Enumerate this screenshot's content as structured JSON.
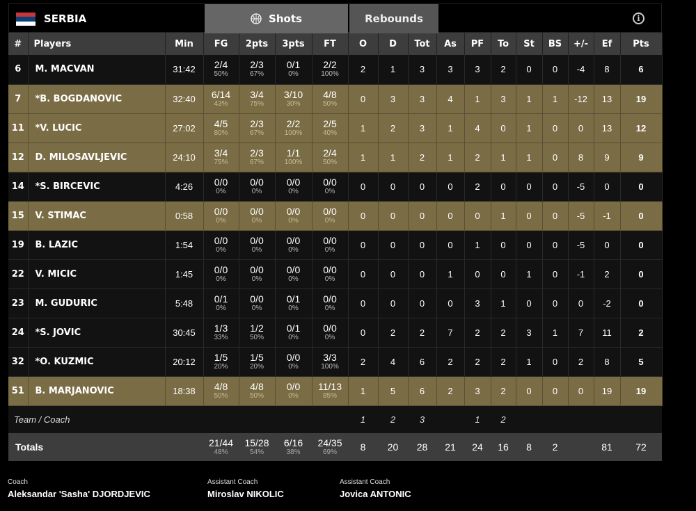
{
  "header": {
    "team": "SERBIA",
    "flag_colors": [
      "#c6363c",
      "#0c4076",
      "#ffffff"
    ],
    "tabs": [
      {
        "label": "Shots",
        "icon": "basketball-icon"
      },
      {
        "label": "Rebounds"
      }
    ],
    "info_icon": "info-icon"
  },
  "columns": [
    "#",
    "Players",
    "Min",
    "FG",
    "2pts",
    "3pts",
    "FT",
    "O",
    "D",
    "Tot",
    "As",
    "PF",
    "To",
    "St",
    "BS",
    "+/-",
    "Ef",
    "Pts"
  ],
  "colors": {
    "starter_row": "#7a6c44",
    "bench_row": "#121212",
    "header": "#3d3d3d"
  },
  "players": [
    {
      "num": "6",
      "name": "M. MACVAN",
      "min": "31:42",
      "fg": [
        "2/4",
        "50%"
      ],
      "p2": [
        "2/3",
        "67%"
      ],
      "p3": [
        "0/1",
        "0%"
      ],
      "ft": [
        "2/2",
        "100%"
      ],
      "stats": [
        "2",
        "1",
        "3",
        "3",
        "3",
        "2",
        "0",
        "0",
        "-4",
        "8",
        "6"
      ],
      "hl": false
    },
    {
      "num": "7",
      "name": "*B. BOGDANOVIC",
      "min": "32:40",
      "fg": [
        "6/14",
        "43%"
      ],
      "p2": [
        "3/4",
        "75%"
      ],
      "p3": [
        "3/10",
        "30%"
      ],
      "ft": [
        "4/8",
        "50%"
      ],
      "stats": [
        "0",
        "3",
        "3",
        "4",
        "1",
        "3",
        "1",
        "1",
        "-12",
        "13",
        "19"
      ],
      "hl": true
    },
    {
      "num": "11",
      "name": "*V. LUCIC",
      "min": "27:02",
      "fg": [
        "4/5",
        "80%"
      ],
      "p2": [
        "2/3",
        "67%"
      ],
      "p3": [
        "2/2",
        "100%"
      ],
      "ft": [
        "2/5",
        "40%"
      ],
      "stats": [
        "1",
        "2",
        "3",
        "1",
        "4",
        "0",
        "1",
        "0",
        "0",
        "13",
        "12"
      ],
      "hl": true
    },
    {
      "num": "12",
      "name": "D. MILOSAVLJEVIC",
      "min": "24:10",
      "fg": [
        "3/4",
        "75%"
      ],
      "p2": [
        "2/3",
        "67%"
      ],
      "p3": [
        "1/1",
        "100%"
      ],
      "ft": [
        "2/4",
        "50%"
      ],
      "stats": [
        "1",
        "1",
        "2",
        "1",
        "2",
        "1",
        "1",
        "0",
        "8",
        "9",
        "9"
      ],
      "hl": true
    },
    {
      "num": "14",
      "name": "*S. BIRCEVIC",
      "min": "4:26",
      "fg": [
        "0/0",
        "0%"
      ],
      "p2": [
        "0/0",
        "0%"
      ],
      "p3": [
        "0/0",
        "0%"
      ],
      "ft": [
        "0/0",
        "0%"
      ],
      "stats": [
        "0",
        "0",
        "0",
        "0",
        "2",
        "0",
        "0",
        "0",
        "-5",
        "0",
        "0"
      ],
      "hl": false
    },
    {
      "num": "15",
      "name": "V. STIMAC",
      "min": "0:58",
      "fg": [
        "0/0",
        "0%"
      ],
      "p2": [
        "0/0",
        "0%"
      ],
      "p3": [
        "0/0",
        "0%"
      ],
      "ft": [
        "0/0",
        "0%"
      ],
      "stats": [
        "0",
        "0",
        "0",
        "0",
        "0",
        "1",
        "0",
        "0",
        "-5",
        "-1",
        "0"
      ],
      "hl": true
    },
    {
      "num": "19",
      "name": "B. LAZIC",
      "min": "1:54",
      "fg": [
        "0/0",
        "0%"
      ],
      "p2": [
        "0/0",
        "0%"
      ],
      "p3": [
        "0/0",
        "0%"
      ],
      "ft": [
        "0/0",
        "0%"
      ],
      "stats": [
        "0",
        "0",
        "0",
        "0",
        "1",
        "0",
        "0",
        "0",
        "-5",
        "0",
        "0"
      ],
      "hl": false
    },
    {
      "num": "22",
      "name": "V. MICIC",
      "min": "1:45",
      "fg": [
        "0/0",
        "0%"
      ],
      "p2": [
        "0/0",
        "0%"
      ],
      "p3": [
        "0/0",
        "0%"
      ],
      "ft": [
        "0/0",
        "0%"
      ],
      "stats": [
        "0",
        "0",
        "0",
        "1",
        "0",
        "0",
        "1",
        "0",
        "-1",
        "2",
        "0"
      ],
      "hl": false
    },
    {
      "num": "23",
      "name": "M. GUDURIC",
      "min": "5:48",
      "fg": [
        "0/1",
        "0%"
      ],
      "p2": [
        "0/0",
        "0%"
      ],
      "p3": [
        "0/1",
        "0%"
      ],
      "ft": [
        "0/0",
        "0%"
      ],
      "stats": [
        "0",
        "0",
        "0",
        "0",
        "3",
        "1",
        "0",
        "0",
        "0",
        "-2",
        "0"
      ],
      "hl": false
    },
    {
      "num": "24",
      "name": "*S. JOVIC",
      "min": "30:45",
      "fg": [
        "1/3",
        "33%"
      ],
      "p2": [
        "1/2",
        "50%"
      ],
      "p3": [
        "0/1",
        "0%"
      ],
      "ft": [
        "0/0",
        "0%"
      ],
      "stats": [
        "0",
        "2",
        "2",
        "7",
        "2",
        "2",
        "3",
        "1",
        "7",
        "11",
        "2"
      ],
      "hl": false
    },
    {
      "num": "32",
      "name": "*O. KUZMIC",
      "min": "20:12",
      "fg": [
        "1/5",
        "20%"
      ],
      "p2": [
        "1/5",
        "20%"
      ],
      "p3": [
        "0/0",
        "0%"
      ],
      "ft": [
        "3/3",
        "100%"
      ],
      "stats": [
        "2",
        "4",
        "6",
        "2",
        "2",
        "2",
        "1",
        "0",
        "2",
        "8",
        "5"
      ],
      "hl": false
    },
    {
      "num": "51",
      "name": "B. MARJANOVIC",
      "min": "18:38",
      "fg": [
        "4/8",
        "50%"
      ],
      "p2": [
        "4/8",
        "50%"
      ],
      "p3": [
        "0/0",
        "0%"
      ],
      "ft": [
        "11/13",
        "85%"
      ],
      "stats": [
        "1",
        "5",
        "6",
        "2",
        "3",
        "2",
        "0",
        "0",
        "0",
        "19",
        "19"
      ],
      "hl": true
    }
  ],
  "team_row": {
    "label": "Team / Coach",
    "stats": [
      "1",
      "2",
      "3",
      "",
      "1",
      "2",
      "",
      "",
      "",
      "",
      ""
    ]
  },
  "totals": {
    "label": "Totals",
    "fg": [
      "21/44",
      "48%"
    ],
    "p2": [
      "15/28",
      "54%"
    ],
    "p3": [
      "6/16",
      "38%"
    ],
    "ft": [
      "24/35",
      "69%"
    ],
    "stats": [
      "8",
      "20",
      "28",
      "21",
      "24",
      "16",
      "8",
      "2",
      "",
      "81",
      "72"
    ]
  },
  "coaches": [
    {
      "role": "Coach",
      "name": "Aleksandar 'Sasha' DJORDJEVIC"
    },
    {
      "role": "Assistant Coach",
      "name": "Miroslav NIKOLIC"
    },
    {
      "role": "Assistant Coach",
      "name": "Jovica ANTONIC"
    }
  ]
}
